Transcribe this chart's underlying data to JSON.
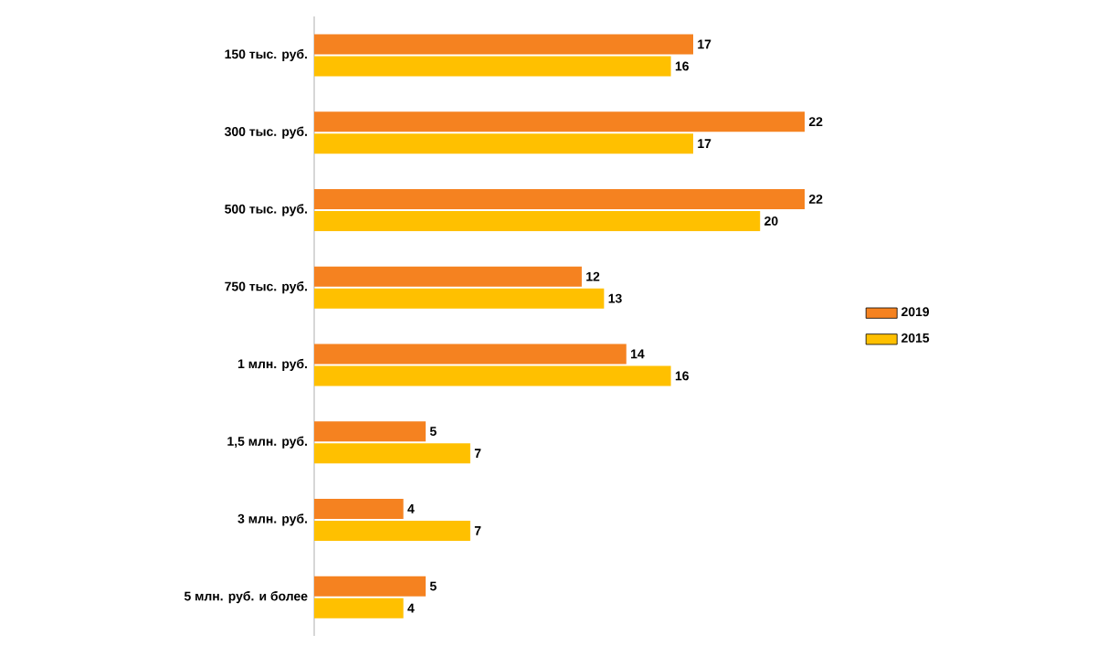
{
  "chart_data": {
    "type": "bar",
    "orientation": "horizontal",
    "categories": [
      "150 тыс. руб.",
      "300 тыс. руб.",
      "500 тыс. руб.",
      "750 тыс. руб.",
      "1 млн. руб.",
      "1,5 млн. руб.",
      "3 млн. руб.",
      "5 млн. руб. и более"
    ],
    "series": [
      {
        "name": "2019",
        "color": "#f58220",
        "values": [
          17,
          22,
          22,
          12,
          14,
          5,
          4,
          5
        ]
      },
      {
        "name": "2015",
        "color": "#ffc000",
        "values": [
          16,
          17,
          20,
          13,
          16,
          7,
          7,
          4
        ]
      }
    ],
    "data_labels": true,
    "legend": "right"
  }
}
